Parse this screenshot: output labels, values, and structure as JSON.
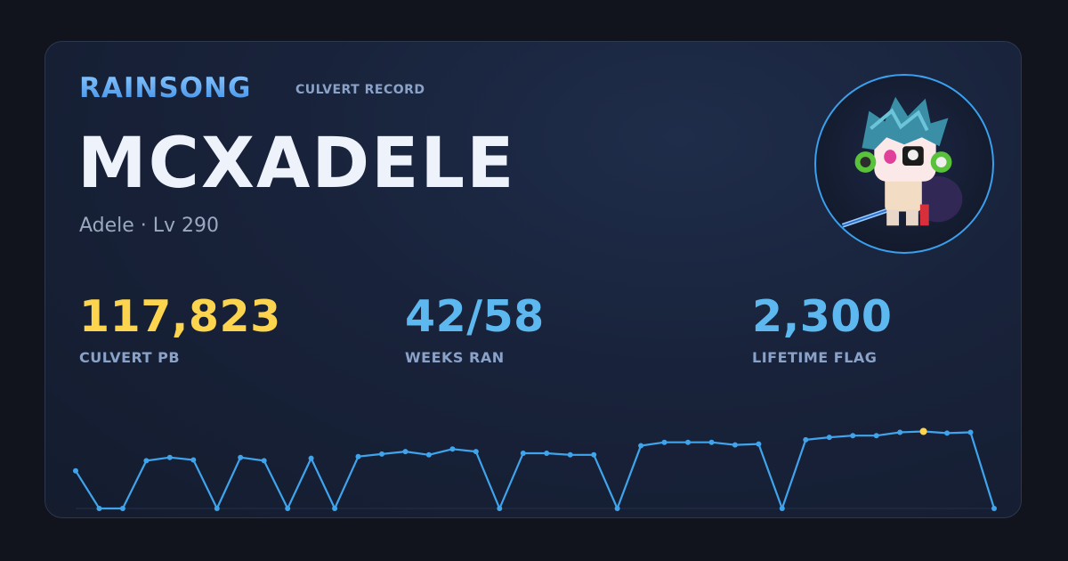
{
  "header": {
    "brand": "RAINSONG",
    "subtitle": "CULVERT RECORD"
  },
  "player": {
    "name": "MCXADELE",
    "meta": "Adele · Lv 290",
    "avatar_icon": "character-avatar-icon"
  },
  "stats": [
    {
      "value": "117,823",
      "label": "CULVERT PB",
      "color": "#fcd44e"
    },
    {
      "value": "42/58",
      "label": "WEEKS RAN",
      "color": "#5cb8ef"
    },
    {
      "value": "2,300",
      "label": "LIFETIME FLAG",
      "color": "#5cb8ef"
    }
  ],
  "chart_data": {
    "type": "line",
    "title": "",
    "xlabel": "",
    "ylabel": "",
    "ylim": [
      0,
      1
    ],
    "series": [
      {
        "values": [
          0.45,
          0,
          0,
          0.57,
          0.61,
          0.58,
          0,
          0.61,
          0.57,
          0,
          0.6,
          0,
          0.62,
          0.65,
          0.68,
          0.64,
          0.71,
          0.68,
          0,
          0.66,
          0.66,
          0.64,
          0.64,
          0,
          0.75,
          0.79,
          0.79,
          0.79,
          0.76,
          0.77,
          0,
          0.82,
          0.85,
          0.87,
          0.87,
          0.91,
          0.92,
          0.9,
          0.91,
          0
        ]
      }
    ],
    "highlight_index": 36,
    "line_color": "#3fa4ec",
    "highlight_color": "#fcd44e"
  }
}
